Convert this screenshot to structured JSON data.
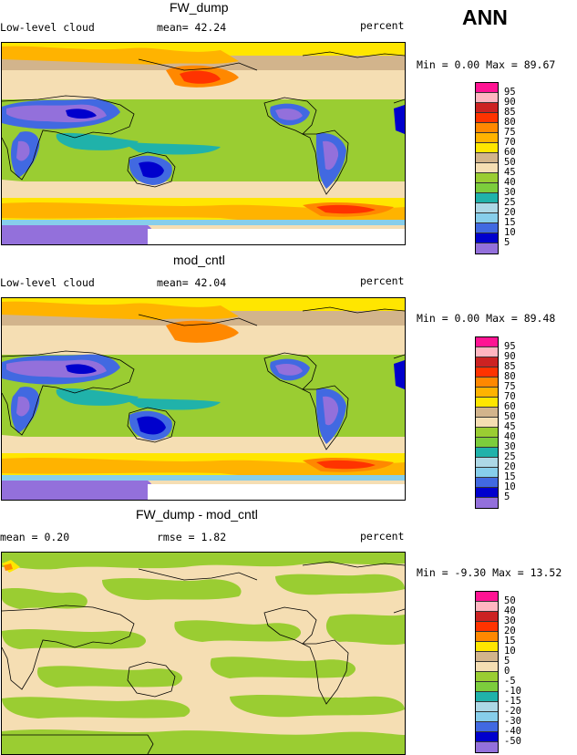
{
  "season": "ANN",
  "colors": {
    "levels_abs": [
      "#ff1493",
      "#ffb6c1",
      "#cc2222",
      "#ff3300",
      "#ff8800",
      "#ffb300",
      "#ffe600",
      "#d2b48c",
      "#f5deb3",
      "#9acd32",
      "#7ccd3c",
      "#20b2aa",
      "#add8e6",
      "#87ceeb",
      "#4169e1",
      "#0000cd",
      "#9370db"
    ],
    "levels_diff": [
      "#ff1493",
      "#ffb6c1",
      "#cc2222",
      "#ff3300",
      "#ff8800",
      "#ffe600",
      "#d2b48c",
      "#f5deb3",
      "#9acd32",
      "#7ccd3c",
      "#20b2aa",
      "#add8e6",
      "#87ceeb",
      "#4169e1",
      "#0000cd",
      "#9370db"
    ]
  },
  "panels": [
    {
      "title": "FW_dump",
      "left_label": "Low-level cloud",
      "stat": "mean=  42.24",
      "units": "percent",
      "minmax": "Min =    0.00 Max =  89.67",
      "ticks": [
        "95",
        "90",
        "85",
        "80",
        "75",
        "70",
        "60",
        "50",
        "45",
        "40",
        "30",
        "25",
        "20",
        "15",
        "10",
        "5"
      ]
    },
    {
      "title": "mod_cntl",
      "left_label": "Low-level cloud",
      "stat": "mean=  42.04",
      "units": "percent",
      "minmax": "Min =    0.00 Max =  89.48",
      "ticks": [
        "95",
        "90",
        "85",
        "80",
        "75",
        "70",
        "60",
        "50",
        "45",
        "40",
        "30",
        "25",
        "20",
        "15",
        "10",
        "5"
      ]
    },
    {
      "title": "FW_dump - mod_cntl",
      "left_label": "mean =   0.20",
      "stat": "rmse =   1.82",
      "units": "percent",
      "minmax": "Min =  -9.30 Max =  13.52",
      "ticks": [
        "50",
        "40",
        "30",
        "20",
        "15",
        "10",
        "5",
        "0",
        "-5",
        "-10",
        "-15",
        "-20",
        "-30",
        "-40",
        "-50"
      ]
    }
  ]
}
